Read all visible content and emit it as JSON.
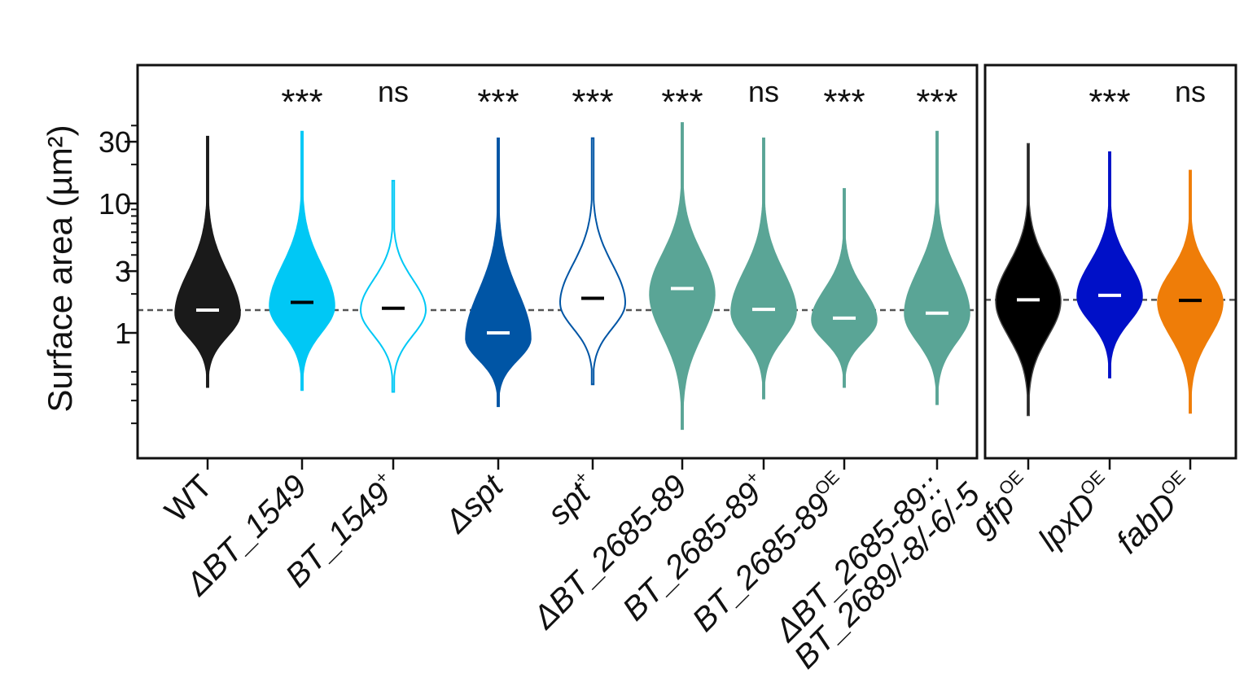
{
  "chart_data": {
    "type": "violin",
    "ylabel": "Surface area (µm²)",
    "yscale": "log",
    "ylim": [
      0.12,
      120
    ],
    "yticks": [
      1,
      3,
      10,
      30
    ],
    "colors": {
      "black": "#1a1a1a",
      "cyan": "#00c8f5",
      "blue": "#0055a5",
      "teal": "#5aa596",
      "pureblack": "#000000",
      "navy": "#0010c8",
      "orange": "#ef7d08",
      "reference_line": "#555555"
    },
    "panels": [
      {
        "reference_median": 1.5,
        "groups": [
          {
            "label": "WT",
            "sup": "",
            "upright": true,
            "significance": "",
            "color": "black",
            "fill": true,
            "min": 0.38,
            "max": 33,
            "median": 1.5,
            "mode": 1.4,
            "width": 0.34,
            "median_color": "#ffffff"
          },
          {
            "label": "ΔBT_1549",
            "sup": "",
            "upright": false,
            "significance": "***",
            "color": "cyan",
            "fill": true,
            "min": 0.36,
            "max": 36,
            "median": 1.72,
            "mode": 1.6,
            "width": 0.34,
            "median_color": "#000000"
          },
          {
            "label": "BT_1549",
            "sup": "+",
            "upright": false,
            "significance": "ns",
            "color": "cyan",
            "fill": false,
            "min": 0.35,
            "max": 15,
            "median": 1.55,
            "mode": 1.5,
            "width": 0.34,
            "median_color": "#000000"
          },
          {
            "label": "Δspt",
            "sup": "",
            "upright": false,
            "significance": "***",
            "color": "blue",
            "fill": true,
            "min": 0.27,
            "max": 32,
            "median": 1.0,
            "mode": 0.9,
            "width": 0.34,
            "median_color": "#ffffff"
          },
          {
            "label": "spt",
            "sup": "+",
            "upright": false,
            "significance": "***",
            "color": "blue",
            "fill": false,
            "min": 0.4,
            "max": 32,
            "median": 1.85,
            "mode": 1.7,
            "width": 0.34,
            "median_color": "#000000"
          },
          {
            "label": "ΔBT_2685-89",
            "sup": "",
            "upright": false,
            "significance": "***",
            "color": "teal",
            "fill": true,
            "min": 0.18,
            "max": 42,
            "median": 2.2,
            "mode": 2.0,
            "width": 0.34,
            "median_color": "#ffffff"
          },
          {
            "label": "BT_2685-89",
            "sup": "+",
            "upright": false,
            "significance": "ns",
            "color": "teal",
            "fill": true,
            "min": 0.31,
            "max": 32,
            "median": 1.52,
            "mode": 1.45,
            "width": 0.34,
            "median_color": "#ffffff"
          },
          {
            "label": "BT_2685-89",
            "sup": "OE",
            "upright": false,
            "significance": "***",
            "color": "teal",
            "fill": true,
            "min": 0.38,
            "max": 13,
            "median": 1.3,
            "mode": 1.25,
            "width": 0.34,
            "median_color": "#ffffff"
          },
          {
            "label": "ΔBT_2685-89::",
            "label2": "BT_2689/-8/-6/-5",
            "sup": "",
            "upright": false,
            "significance": "***",
            "color": "teal",
            "fill": true,
            "min": 0.28,
            "max": 36,
            "median": 1.42,
            "mode": 1.4,
            "width": 0.34,
            "median_color": "#ffffff"
          }
        ]
      },
      {
        "reference_median": 1.8,
        "groups": [
          {
            "label": "gfp",
            "sup": "OE",
            "upright": false,
            "significance": "",
            "color": "pureblack",
            "fill": true,
            "min": 0.23,
            "max": 29,
            "median": 1.8,
            "mode": 1.75,
            "width": 0.34,
            "median_color": "#ffffff",
            "outline": "#444444"
          },
          {
            "label": "lpxD",
            "sup": "OE",
            "upright": false,
            "significance": "***",
            "color": "navy",
            "fill": true,
            "min": 0.45,
            "max": 25,
            "median": 1.95,
            "mode": 1.9,
            "width": 0.34,
            "median_color": "#ffffff"
          },
          {
            "label": "fabD",
            "sup": "OE",
            "upright": false,
            "significance": "ns",
            "color": "orange",
            "fill": true,
            "min": 0.24,
            "max": 18,
            "median": 1.78,
            "mode": 1.72,
            "width": 0.34,
            "median_color": "#000000"
          }
        ]
      }
    ]
  }
}
